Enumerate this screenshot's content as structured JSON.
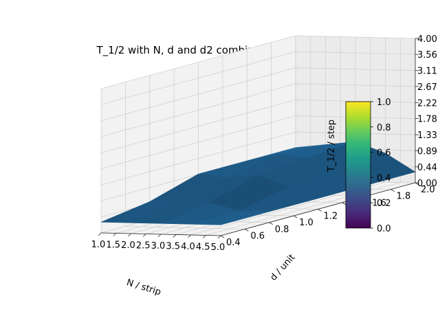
{
  "chart_data": {
    "type": "surface",
    "title": "T_1/2 with N, d and d2 combinations",
    "xlabel": "N / strip",
    "ylabel": "d / unit",
    "zlabel": "T_1/2 / step",
    "x_ticks": [
      "1.0",
      "1.5",
      "2.0",
      "2.5",
      "3.0",
      "3.5",
      "4.0",
      "4.5",
      "5.0"
    ],
    "y_ticks": [
      "0.4",
      "0.6",
      "0.8",
      "1.0",
      "1.2",
      "1.4",
      "1.6",
      "1.8",
      "2.0"
    ],
    "z_ticks": [
      "0.00",
      "0.44",
      "0.89",
      "1.33",
      "1.78",
      "2.22",
      "2.67",
      "3.11",
      "3.56",
      "4.00"
    ],
    "xlim": [
      1.0,
      5.0
    ],
    "ylim": [
      0.4,
      2.0
    ],
    "zlim": [
      0.0,
      4.0
    ],
    "grid": true,
    "surface_color": "#1f5e8c",
    "surface_x": [
      1,
      2,
      3,
      4,
      5
    ],
    "surface_y": [
      0.4,
      0.8,
      1.2,
      1.6,
      2.0
    ],
    "surface_z": [
      [
        0.3,
        0.3,
        0.3,
        0.3,
        0.3
      ],
      [
        0.5,
        0.6,
        0.5,
        0.3,
        0.3
      ],
      [
        0.9,
        0.8,
        0.9,
        0.6,
        0.3
      ],
      [
        0.9,
        1.1,
        1.0,
        0.7,
        0.3
      ],
      [
        0.9,
        1.0,
        1.1,
        0.8,
        0.3
      ]
    ],
    "colorbar": {
      "ticks": [
        "0.0",
        "0.2",
        "0.4",
        "0.6",
        "0.8",
        "1.0"
      ],
      "range": [
        0.0,
        1.0
      ],
      "colormap": "viridis",
      "colors": [
        "#440154",
        "#482878",
        "#3e4989",
        "#31688e",
        "#26828e",
        "#1f9e89",
        "#35b779",
        "#6ece58",
        "#b5de2b",
        "#fde725"
      ]
    }
  }
}
